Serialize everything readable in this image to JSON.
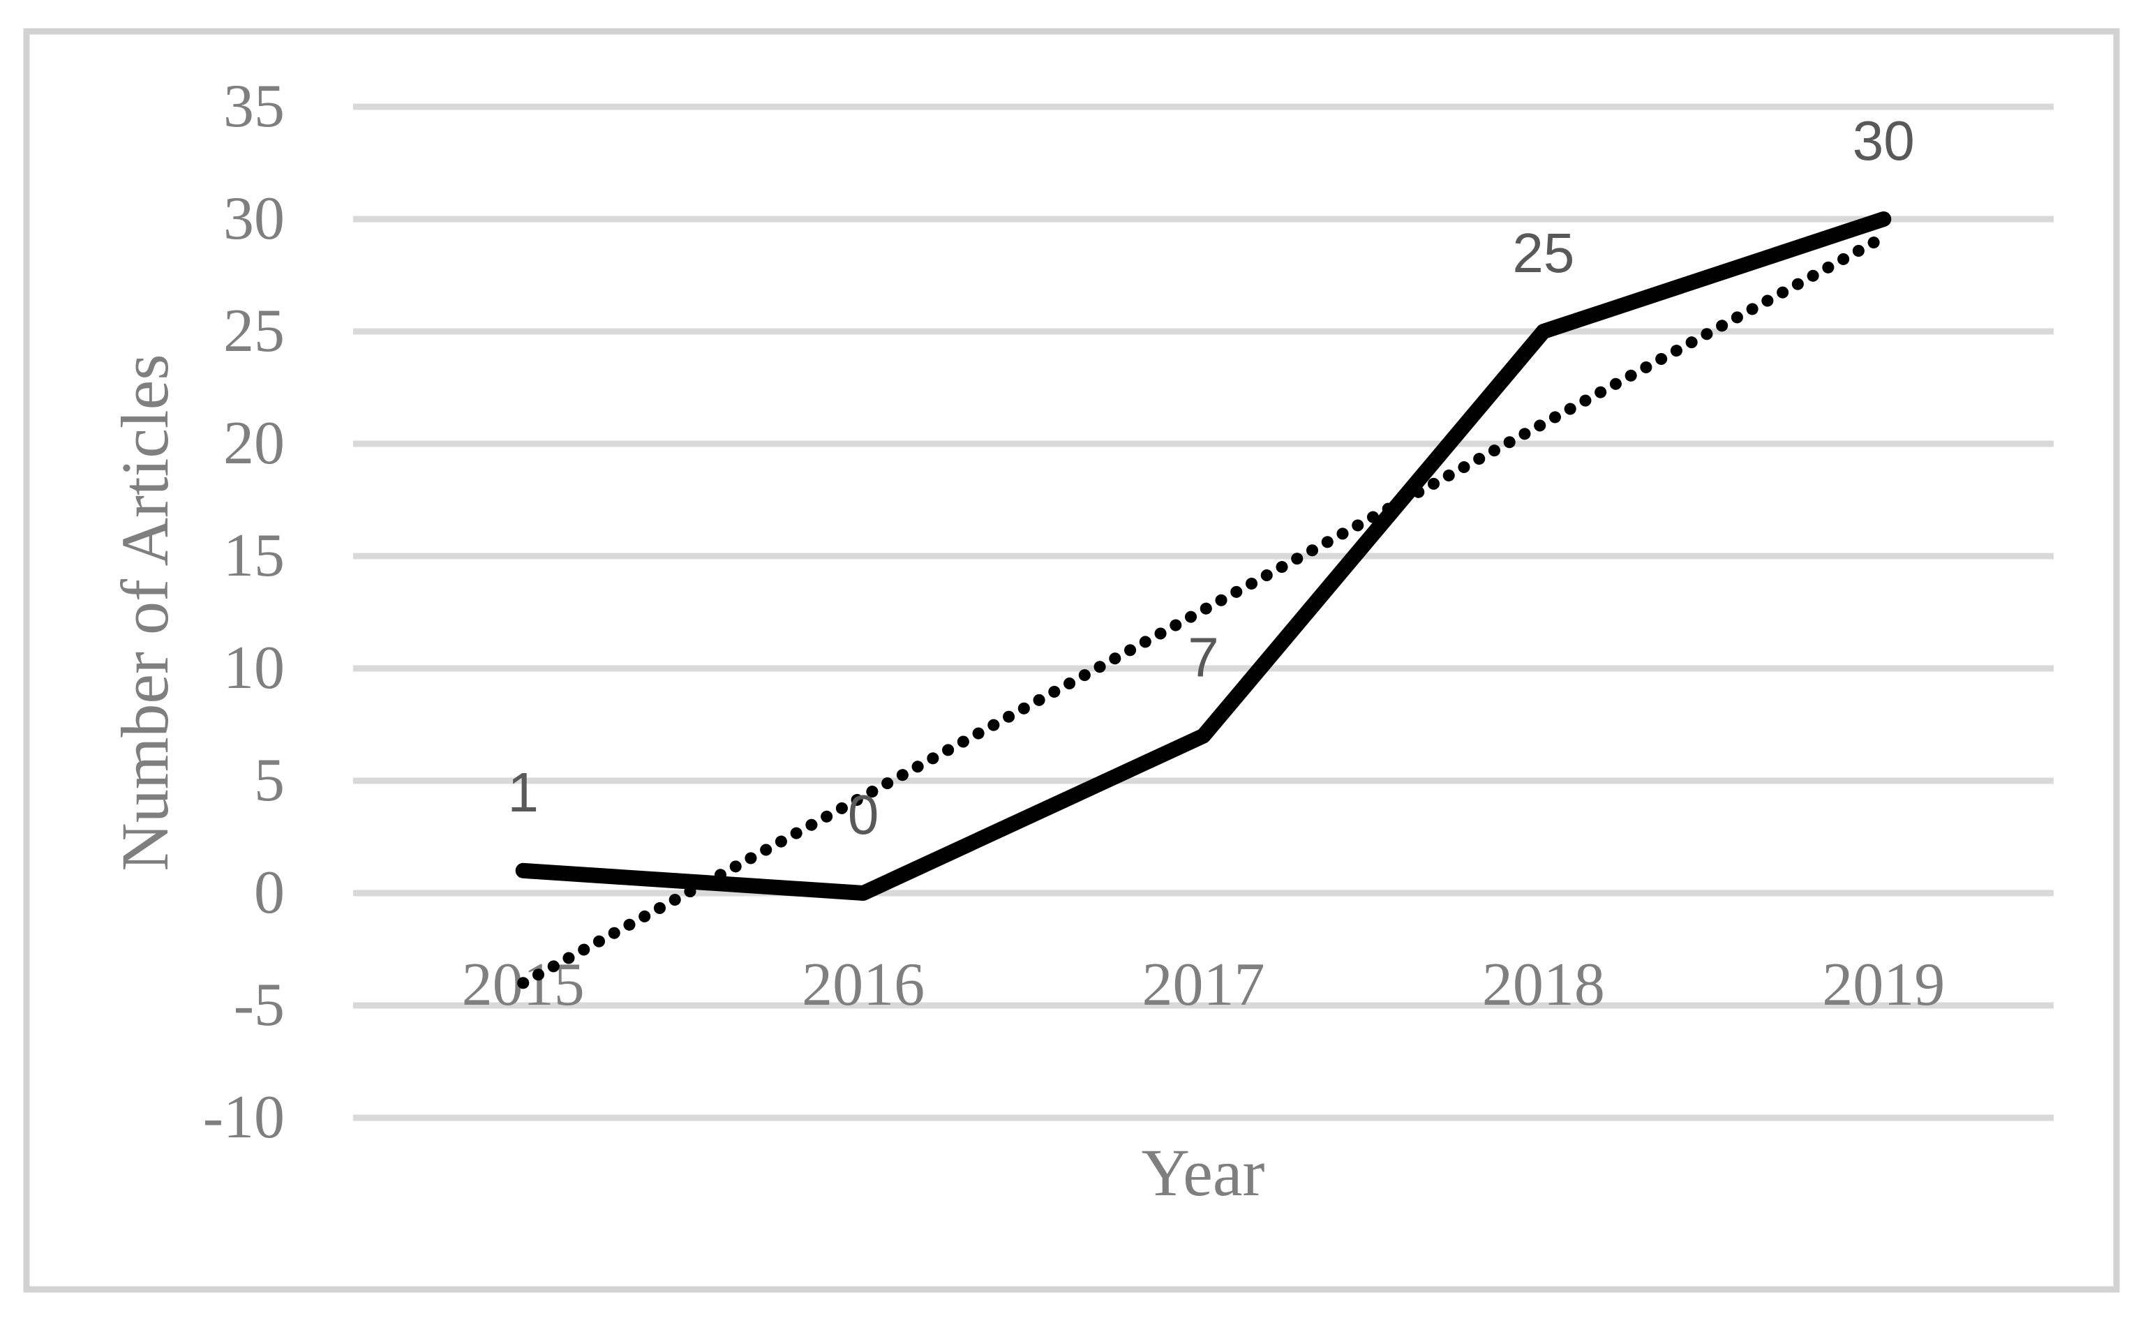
{
  "chart_data": {
    "type": "line",
    "xlabel": "Year",
    "ylabel": "Number of Articles",
    "categories": [
      "2015",
      "2016",
      "2017",
      "2018",
      "2019"
    ],
    "series": [
      {
        "name": "Number of Articles",
        "values": [
          1,
          0,
          7,
          25,
          30
        ],
        "data_labels": [
          "1",
          "0",
          "7",
          "25",
          "30"
        ],
        "style": "solid",
        "color": "#000000"
      },
      {
        "name": "Linear trendline",
        "style": "round-dot",
        "color": "#000000",
        "trend_start_value": -4,
        "trend_end_value": 29.2
      }
    ],
    "y_axis": {
      "min": -10,
      "max": 35,
      "step": 5,
      "tick_labels": [
        "35",
        "30",
        "25",
        "20",
        "15",
        "10",
        "5",
        "0",
        "-5",
        "-10"
      ]
    },
    "x_axis": {
      "tick_labels": [
        "2015",
        "2016",
        "2017",
        "2018",
        "2019"
      ]
    },
    "grid": {
      "horizontal": true,
      "vertical": false
    },
    "legend": "none",
    "styles": {
      "axis_text_color": "#7f7f7f",
      "data_label_color": "#595959",
      "gridline_color": "#d9d9d9",
      "frame_color": "#d2d2d2",
      "background_color": "#ffffff"
    }
  }
}
